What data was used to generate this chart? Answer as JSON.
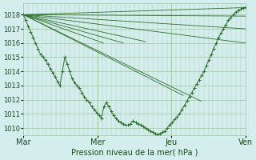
{
  "xlabel": "Pression niveau de la mer( hPa )",
  "background_color": "#d4eeee",
  "grid_color": "#aaccaa",
  "line_color": "#2d6e2d",
  "ylim": [
    1009.5,
    1018.8
  ],
  "yticks": [
    1010,
    1011,
    1012,
    1013,
    1014,
    1015,
    1016,
    1017,
    1018
  ],
  "xtick_labels": [
    "Mar",
    "Mer",
    "Jeu",
    "Ven"
  ],
  "xtick_positions": [
    0,
    0.333,
    0.667,
    1.0
  ],
  "straight_lines": [
    {
      "x": [
        0.0,
        0.36
      ],
      "y": [
        1018.0,
        1016.0
      ]
    },
    {
      "x": [
        0.0,
        0.45
      ],
      "y": [
        1018.0,
        1016.0
      ]
    },
    {
      "x": [
        0.0,
        0.55
      ],
      "y": [
        1018.0,
        1016.1
      ]
    },
    {
      "x": [
        0.0,
        0.72
      ],
      "y": [
        1018.0,
        1012.3
      ]
    },
    {
      "x": [
        0.0,
        0.8
      ],
      "y": [
        1018.0,
        1011.9
      ]
    },
    {
      "x": [
        0.0,
        1.0
      ],
      "y": [
        1018.0,
        1018.5
      ]
    },
    {
      "x": [
        0.0,
        1.0
      ],
      "y": [
        1018.0,
        1017.9
      ]
    },
    {
      "x": [
        0.0,
        1.0
      ],
      "y": [
        1018.0,
        1017.0
      ]
    },
    {
      "x": [
        0.0,
        1.0
      ],
      "y": [
        1018.0,
        1016.0
      ]
    }
  ],
  "detailed_x": [
    0.0,
    0.01,
    0.02,
    0.032,
    0.043,
    0.054,
    0.065,
    0.076,
    0.087,
    0.098,
    0.109,
    0.12,
    0.131,
    0.142,
    0.153,
    0.164,
    0.175,
    0.186,
    0.197,
    0.208,
    0.219,
    0.23,
    0.241,
    0.252,
    0.263,
    0.274,
    0.285,
    0.296,
    0.307,
    0.318,
    0.329,
    0.34,
    0.351,
    0.362,
    0.373,
    0.384,
    0.395,
    0.406,
    0.417,
    0.428,
    0.439,
    0.45,
    0.461,
    0.472,
    0.483,
    0.494,
    0.505,
    0.516,
    0.527,
    0.538,
    0.549,
    0.56,
    0.571,
    0.582,
    0.593,
    0.604,
    0.615,
    0.626,
    0.637,
    0.648,
    0.659,
    0.67,
    0.681,
    0.692,
    0.703,
    0.714,
    0.725,
    0.736,
    0.747,
    0.758,
    0.769,
    0.78,
    0.791,
    0.802,
    0.813,
    0.824,
    0.835,
    0.846,
    0.857,
    0.868,
    0.879,
    0.89,
    0.901,
    0.912,
    0.923,
    0.934,
    0.945,
    0.956,
    0.967,
    0.978,
    0.989,
    1.0
  ],
  "detailed_y": [
    1018.0,
    1017.6,
    1017.2,
    1016.8,
    1016.4,
    1016.0,
    1015.6,
    1015.2,
    1015.0,
    1014.8,
    1014.5,
    1014.2,
    1013.9,
    1013.6,
    1013.3,
    1013.0,
    1014.0,
    1015.0,
    1014.5,
    1014.0,
    1013.5,
    1013.2,
    1013.0,
    1012.8,
    1012.5,
    1012.2,
    1012.0,
    1011.8,
    1011.5,
    1011.3,
    1011.1,
    1010.9,
    1010.7,
    1011.5,
    1011.8,
    1011.5,
    1011.2,
    1010.9,
    1010.7,
    1010.5,
    1010.4,
    1010.3,
    1010.2,
    1010.2,
    1010.3,
    1010.5,
    1010.4,
    1010.3,
    1010.2,
    1010.1,
    1010.0,
    1009.9,
    1009.8,
    1009.7,
    1009.6,
    1009.55,
    1009.6,
    1009.7,
    1009.8,
    1010.0,
    1010.2,
    1010.4,
    1010.6,
    1010.8,
    1011.0,
    1011.3,
    1011.6,
    1011.9,
    1012.2,
    1012.5,
    1012.8,
    1013.1,
    1013.4,
    1013.7,
    1014.0,
    1014.4,
    1014.8,
    1015.2,
    1015.6,
    1016.0,
    1016.4,
    1016.7,
    1017.0,
    1017.3,
    1017.6,
    1017.8,
    1018.0,
    1018.2,
    1018.3,
    1018.4,
    1018.45,
    1018.5
  ]
}
